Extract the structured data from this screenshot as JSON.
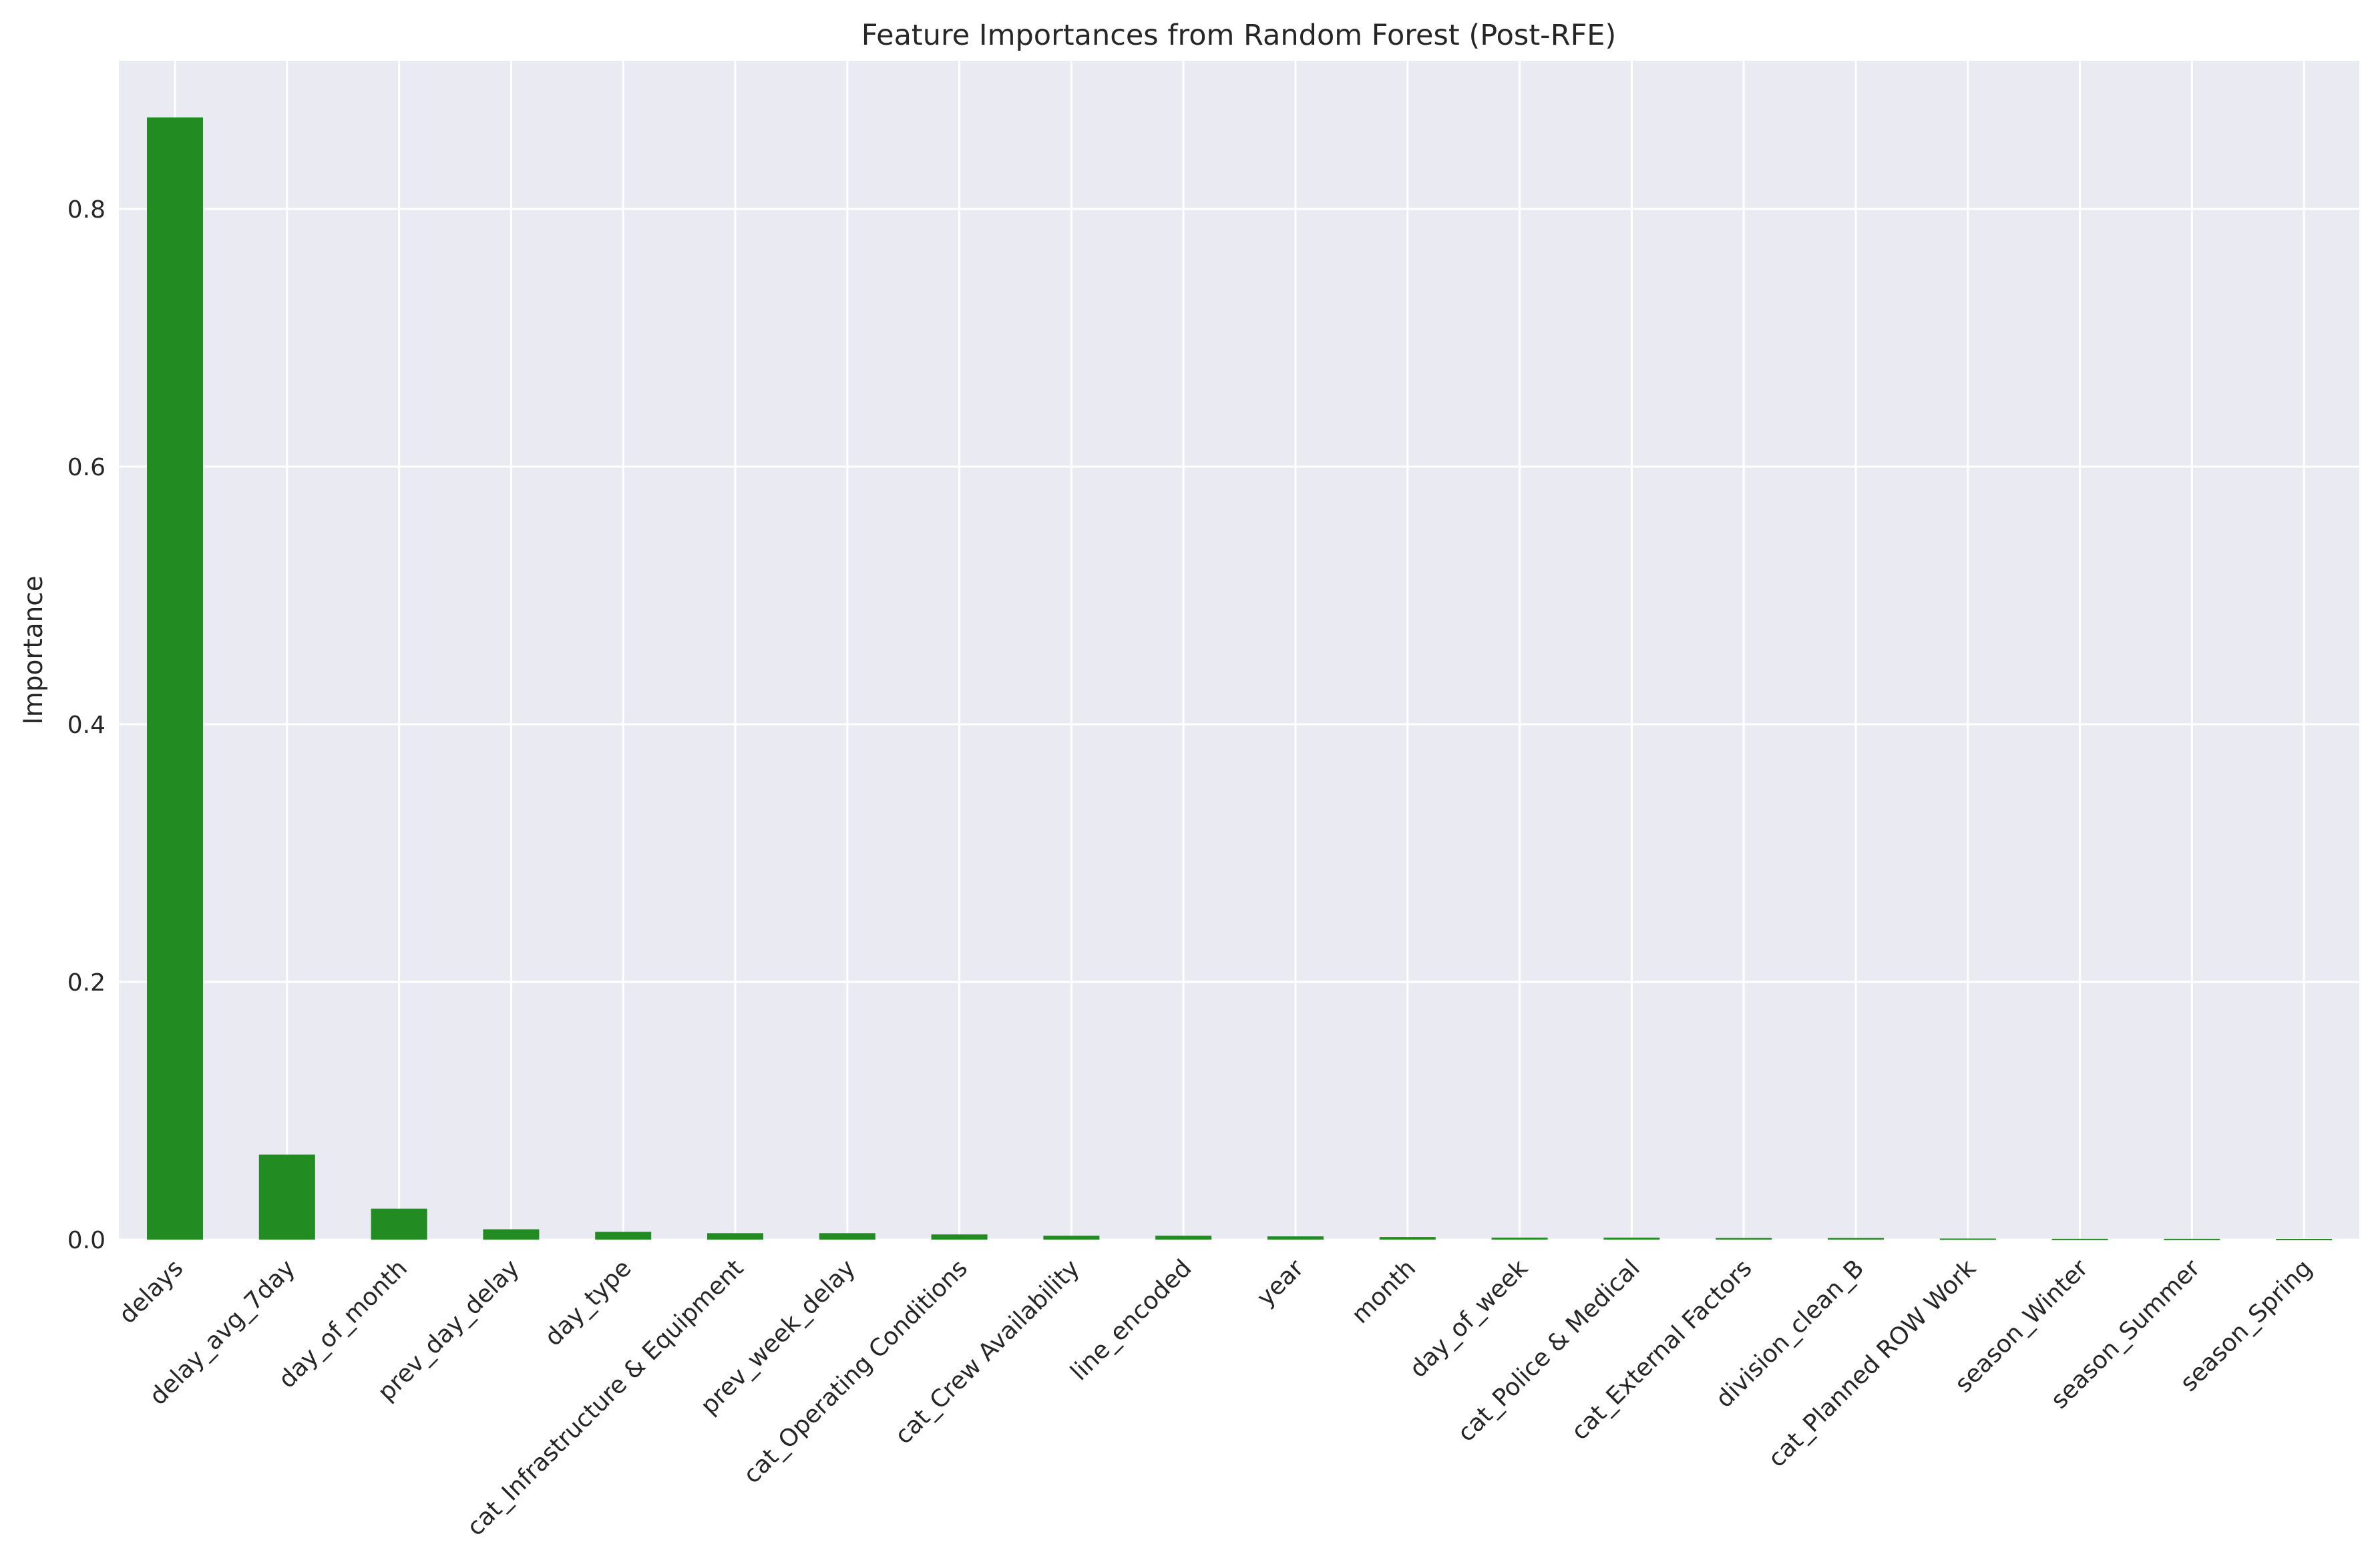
{
  "chart_data": {
    "type": "bar",
    "title": "Feature Importances from Random Forest (Post-RFE)",
    "xlabel": "",
    "ylabel": "Importance",
    "categories": [
      "delays",
      "delay_avg_7day",
      "day_of_month",
      "prev_day_delay",
      "day_type",
      "cat_Infrastructure & Equipment",
      "prev_week_delay",
      "cat_Operating Conditions",
      "cat_Crew Availability",
      "line_encoded",
      "year",
      "month",
      "day_of_week",
      "cat_Police & Medical",
      "cat_External Factors",
      "division_clean_B",
      "cat_Planned ROW Work",
      "season_Winter",
      "season_Summer",
      "season_Spring"
    ],
    "values": [
      0.871,
      0.066,
      0.024,
      0.008,
      0.006,
      0.005,
      0.005,
      0.004,
      0.003,
      0.003,
      0.0025,
      0.002,
      0.0015,
      0.0015,
      0.0012,
      0.0012,
      0.0008,
      0.0006,
      0.0006,
      0.0005
    ],
    "ylim": [
      0,
      0.915
    ],
    "yticks": [
      0.0,
      0.2,
      0.4,
      0.6,
      0.8
    ],
    "ytick_labels": [
      "0.0",
      "0.2",
      "0.4",
      "0.6",
      "0.8"
    ],
    "grid": true,
    "bar_color": "#228b22",
    "background_color": "#eaeaf2",
    "grid_color": "#ffffff"
  }
}
